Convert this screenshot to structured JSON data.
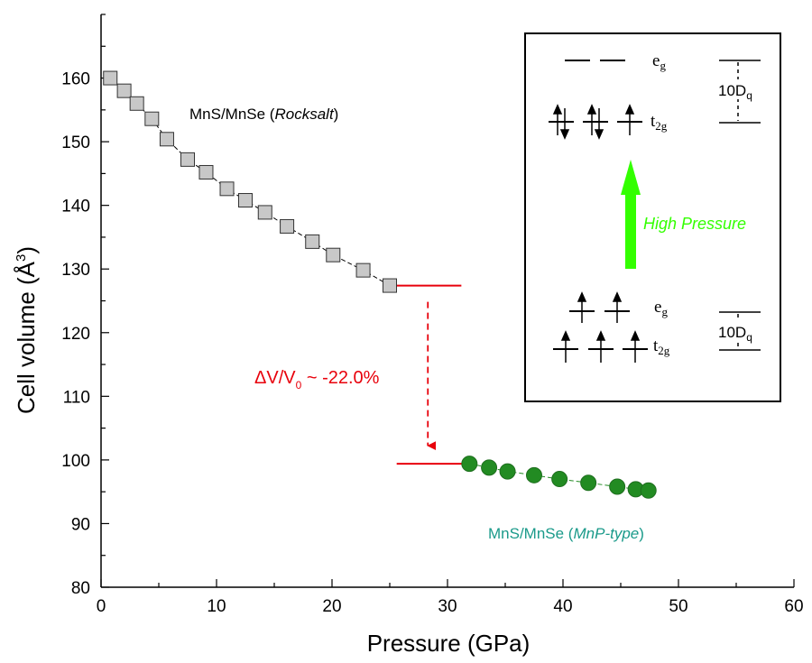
{
  "chart_data": {
    "type": "scatter",
    "xlabel": "Pressure (GPa)",
    "ylabel_main": "Cell volume (",
    "ylabel_unit": "Å",
    "ylabel_sup": "3",
    "ylabel_close": ")",
    "xlim": [
      0,
      60
    ],
    "ylim": [
      80,
      170
    ],
    "x_ticks": [
      0,
      10,
      20,
      30,
      40,
      50,
      60
    ],
    "y_ticks": [
      80,
      90,
      100,
      110,
      120,
      130,
      140,
      150,
      160
    ],
    "series": [
      {
        "marker": "square",
        "color": "#c8c8c8",
        "label_prefix": "MnS/MnSe (",
        "label_italic": "Rocksalt",
        "label_suffix": ")",
        "label_color": "#000000",
        "points": [
          {
            "x": 0.8,
            "y": 160.0
          },
          {
            "x": 2.0,
            "y": 158.0
          },
          {
            "x": 3.1,
            "y": 156.0
          },
          {
            "x": 4.4,
            "y": 153.6
          },
          {
            "x": 5.7,
            "y": 150.4
          },
          {
            "x": 7.5,
            "y": 147.2
          },
          {
            "x": 9.1,
            "y": 145.2
          },
          {
            "x": 10.9,
            "y": 142.6
          },
          {
            "x": 12.5,
            "y": 140.8
          },
          {
            "x": 14.2,
            "y": 138.9
          },
          {
            "x": 16.1,
            "y": 136.7
          },
          {
            "x": 18.3,
            "y": 134.3
          },
          {
            "x": 20.1,
            "y": 132.2
          },
          {
            "x": 22.7,
            "y": 129.8
          },
          {
            "x": 25.0,
            "y": 127.4
          }
        ]
      },
      {
        "marker": "circle",
        "color": "#228b22",
        "label_prefix": "MnS/MnSe (",
        "label_italic": "MnP-type",
        "label_suffix": ")",
        "label_color": "#1a9a8a",
        "points": [
          {
            "x": 31.9,
            "y": 99.4
          },
          {
            "x": 33.6,
            "y": 98.8
          },
          {
            "x": 35.2,
            "y": 98.2
          },
          {
            "x": 37.5,
            "y": 97.6
          },
          {
            "x": 39.7,
            "y": 97.0
          },
          {
            "x": 42.2,
            "y": 96.4
          },
          {
            "x": 44.7,
            "y": 95.8
          },
          {
            "x": 46.3,
            "y": 95.4
          },
          {
            "x": 47.4,
            "y": 95.2
          }
        ]
      }
    ],
    "transition": {
      "upper_level": 127.4,
      "upper_x": [
        25,
        31.2
      ],
      "lower_level": 99.4,
      "lower_x": [
        25.6,
        31.9
      ],
      "arrow_x": 28.3,
      "label_delta": "Δ",
      "label_v": "V/V",
      "label_sub": "0",
      "label_value": " ~ -22.0%",
      "color": "#e8000b"
    },
    "inset": {
      "high_pressure_label": "High Pressure",
      "arrow_color": "#33ff00",
      "eg_symbol": "e",
      "eg_sub": "g",
      "t2g_symbol": "t",
      "t2g_sub": "2g",
      "dq_label": "10D",
      "dq_sub": "q"
    }
  }
}
